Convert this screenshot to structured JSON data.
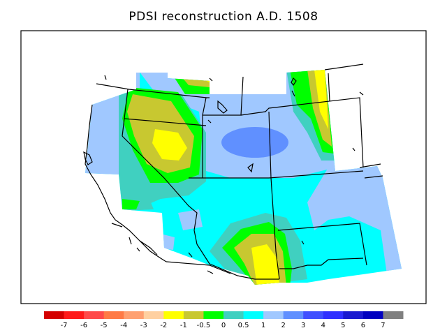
{
  "title": "PDSI reconstruction A.D. 1508",
  "colorbar": {
    "colors": [
      "#d40000",
      "#ff1a1a",
      "#ff4a4a",
      "#ff7a45",
      "#ffa070",
      "#ffd0a0",
      "#ffff00",
      "#c8c830",
      "#00ff00",
      "#40d0c0",
      "#00ffff",
      "#a0c8ff",
      "#6090ff",
      "#4050ff",
      "#3030ff",
      "#1a1ad0",
      "#0000c0",
      "#808080"
    ],
    "labels": [
      "-7",
      "-6",
      "-5",
      "-4",
      "-3",
      "-2",
      "-1",
      "-0.5",
      "0",
      "0.5",
      "1",
      "2",
      "3",
      "4",
      "5",
      "6",
      "7"
    ]
  }
}
